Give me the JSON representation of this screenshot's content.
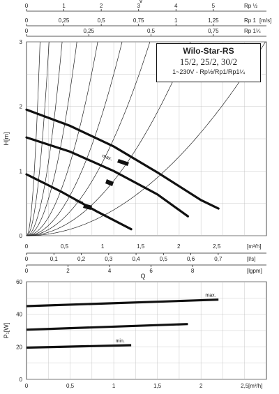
{
  "title": {
    "line1": "Wilo-Star-RS",
    "line2": "15/2, 25/2, 30/2",
    "line3": "1~230V - Rp½/Rp1/Rp1¼"
  },
  "top_scales": [
    {
      "label": "v",
      "unit": "Rp ½",
      "ticks": [
        "0",
        "1",
        "2",
        "3",
        "4",
        "5"
      ],
      "values": [
        0,
        1,
        2,
        3,
        4,
        5
      ],
      "max": 5.6
    },
    {
      "label": "",
      "unit": "Rp 1",
      "ticks": [
        "0",
        "0,25",
        "0,5",
        "0,75",
        "1",
        "1,25"
      ],
      "values": [
        0,
        0.25,
        0.5,
        0.75,
        1,
        1.25
      ],
      "max": 1.4
    },
    {
      "label": "",
      "unit": "Rp 1¼",
      "ticks": [
        "0",
        "0,25",
        "0,5",
        "0,75"
      ],
      "values": [
        0,
        0.25,
        0.5,
        0.75
      ],
      "max": 0.84
    }
  ],
  "top_scale_unit": "[m/s]",
  "bottom_scales": [
    {
      "unit": "[m³/h]",
      "ticks": [
        "0",
        "0,5",
        "1",
        "1,5",
        "2",
        "2,5"
      ],
      "values": [
        0,
        0.5,
        1,
        1.5,
        2,
        2.5
      ],
      "max": 2.75
    },
    {
      "unit": "[l/s]",
      "ticks": [
        "0",
        "0,1",
        "0,2",
        "0,3",
        "0,4",
        "0,5",
        "0,6",
        "0,7"
      ],
      "values": [
        0,
        0.1,
        0.2,
        0.3,
        0.4,
        0.5,
        0.6,
        0.7
      ],
      "max": 0.764
    },
    {
      "unit": "[lgpm]",
      "ticks": [
        "0",
        "2",
        "4",
        "6",
        "8"
      ],
      "values": [
        0,
        2,
        4,
        6,
        8
      ],
      "max": 10.08
    }
  ],
  "bottom_axis_title": "Q",
  "chart_data": [
    {
      "type": "line",
      "name": "head",
      "ylabel": "H[m]",
      "xlabel": "[m³/h]",
      "xlim": [
        0,
        2.75
      ],
      "ylim": [
        0,
        3
      ],
      "yticks": [
        "0",
        "1",
        "2",
        "3"
      ],
      "xticks": [
        "0",
        "0,5",
        "1",
        "1,5",
        "2",
        "2,5"
      ],
      "series": [
        {
          "name": "max.",
          "x": [
            0,
            0.5,
            1,
            1.5,
            2,
            2.2
          ],
          "y": [
            1.95,
            1.7,
            1.38,
            0.98,
            0.55,
            0.42
          ]
        },
        {
          "name": "",
          "x": [
            0,
            0.5,
            1,
            1.5,
            1.85
          ],
          "y": [
            1.52,
            1.3,
            1.0,
            0.64,
            0.3
          ]
        },
        {
          "name": "min.",
          "x": [
            0,
            0.4,
            0.8,
            1.2
          ],
          "y": [
            0.95,
            0.68,
            0.38,
            0.1
          ]
        }
      ],
      "system_curves_k": [
        125,
        45,
        18,
        9,
        4.5,
        2.5,
        1.5,
        0.85,
        0.4
      ],
      "grid": true
    },
    {
      "type": "line",
      "name": "power",
      "ylabel": "P₁[W]",
      "xlabel": "[m³/h]",
      "xlim": [
        0,
        2.75
      ],
      "ylim": [
        0,
        60
      ],
      "yticks": [
        "0",
        "20",
        "40",
        "60"
      ],
      "xticks": [
        "0",
        "0,5",
        "1",
        "1,5",
        "2",
        "2,5"
      ],
      "series": [
        {
          "name": "max.",
          "x": [
            0,
            2.2
          ],
          "y": [
            45,
            49
          ]
        },
        {
          "name": "",
          "x": [
            0,
            1.85
          ],
          "y": [
            30.5,
            34
          ]
        },
        {
          "name": "min.",
          "x": [
            0,
            1.2
          ],
          "y": [
            19.5,
            21
          ]
        }
      ],
      "grid": true
    }
  ]
}
